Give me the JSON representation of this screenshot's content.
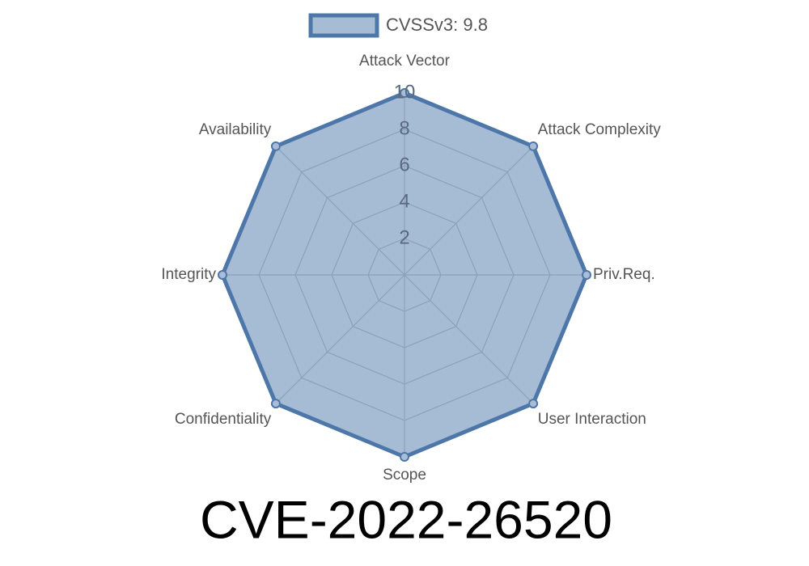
{
  "chart_data": {
    "type": "radar",
    "title": "CVE-2022-26520",
    "categories": [
      "Attack Vector",
      "Attack Complexity",
      "Priv.Req.",
      "User Interaction",
      "Scope",
      "Confidentiality",
      "Integrity",
      "Availability"
    ],
    "series": [
      {
        "name": "CVSSv3: 9.8",
        "color": "#4e77a9",
        "values": [
          10,
          10,
          10,
          10,
          10,
          10,
          10,
          10
        ]
      }
    ],
    "rlim": [
      0,
      10
    ],
    "rticks": [
      2,
      4,
      6,
      8,
      10
    ],
    "grid": true,
    "legend": "top"
  }
}
